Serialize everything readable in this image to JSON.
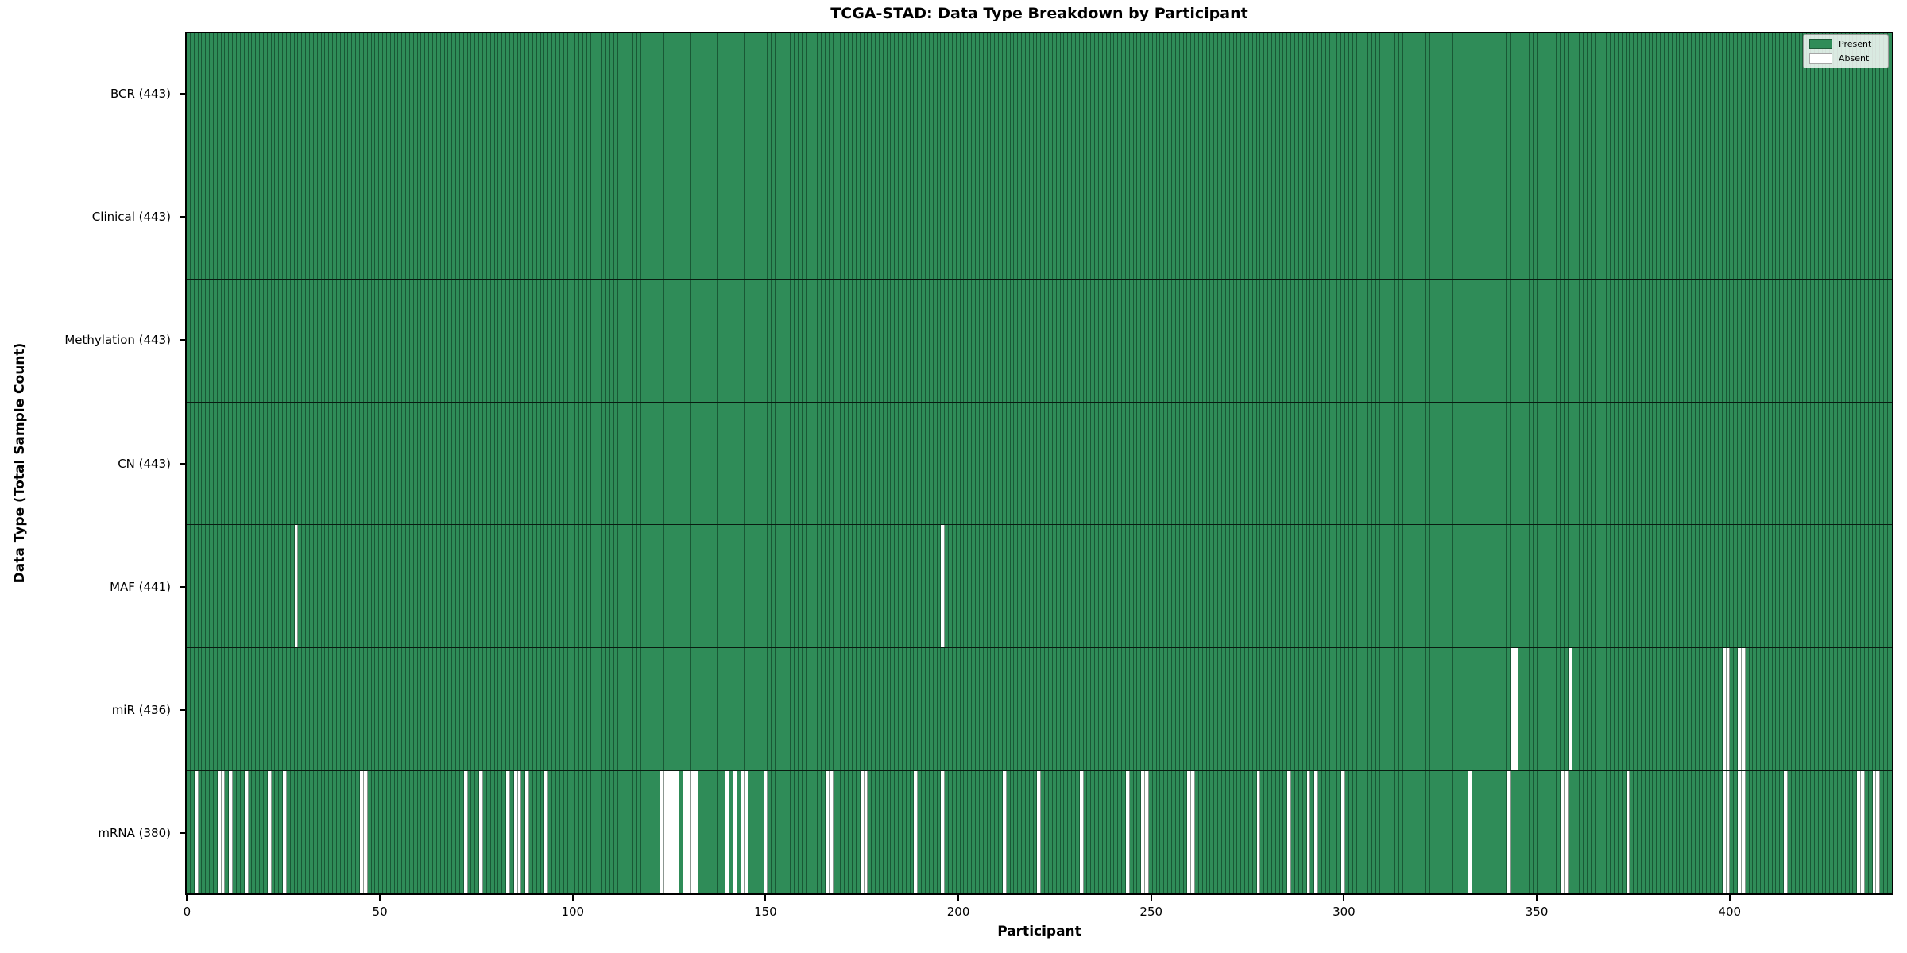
{
  "title": "TCGA-STAD: Data Type Breakdown by Participant",
  "x_axis": {
    "label": "Participant",
    "ticks": [
      0,
      50,
      100,
      150,
      200,
      250,
      300,
      350,
      400
    ]
  },
  "y_axis": {
    "label": "Data Type (Total Sample Count)"
  },
  "legend": {
    "items": [
      {
        "label": "Present",
        "color": "#2f8c58"
      },
      {
        "label": "Absent",
        "color": "#ffffff"
      }
    ]
  },
  "chart_data": {
    "type": "heatmap",
    "title": "TCGA-STAD: Data Type Breakdown by Participant",
    "xlabel": "Participant",
    "ylabel": "Data Type (Total Sample Count)",
    "n_participants": 443,
    "x_ticks": [
      0,
      50,
      100,
      150,
      200,
      250,
      300,
      350,
      400
    ],
    "present_color": "#2f8c58",
    "absent_color": "#ffffff",
    "grid": false,
    "legend_position": "upper right",
    "rows": [
      {
        "data_type": "BCR",
        "label": "BCR (443)",
        "count": 443,
        "absent_participants": []
      },
      {
        "data_type": "Clinical",
        "label": "Clinical (443)",
        "count": 443,
        "absent_participants": []
      },
      {
        "data_type": "Methylation",
        "label": "Methylation (443)",
        "count": 443,
        "absent_participants": []
      },
      {
        "data_type": "CN",
        "label": "CN (443)",
        "count": 443,
        "absent_participants": []
      },
      {
        "data_type": "MAF",
        "label": "MAF (441)",
        "count": 441,
        "absent_participants": [
          28,
          196
        ]
      },
      {
        "data_type": "miR",
        "label": "miR (436)",
        "count": 436,
        "absent_participants": [
          344,
          345,
          359,
          399,
          400,
          403,
          404
        ]
      },
      {
        "data_type": "mRNA",
        "label": "mRNA (380)",
        "count": 380,
        "absent_participants": [
          2,
          8,
          9,
          11,
          15,
          21,
          25,
          45,
          46,
          72,
          76,
          83,
          85,
          86,
          88,
          93,
          123,
          124,
          125,
          126,
          127,
          129,
          130,
          131,
          132,
          140,
          142,
          144,
          145,
          150,
          166,
          167,
          175,
          176,
          189,
          196,
          212,
          221,
          232,
          244,
          248,
          249,
          260,
          261,
          278,
          286,
          291,
          293,
          300,
          333,
          343,
          357,
          358,
          374,
          399,
          400,
          403,
          404,
          415,
          434,
          435,
          438,
          439
        ]
      }
    ]
  }
}
